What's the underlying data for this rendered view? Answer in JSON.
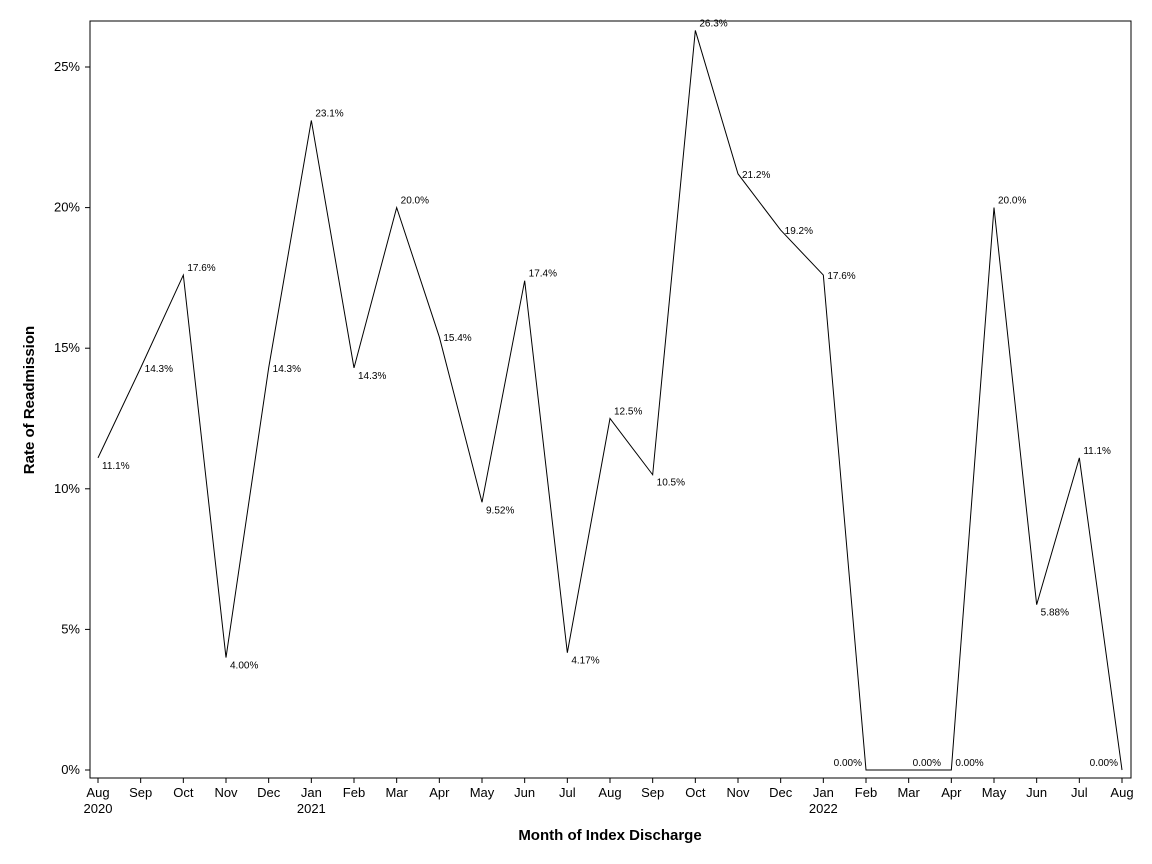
{
  "chart_data": {
    "type": "line",
    "title": "",
    "xlabel": "Month of Index Discharge",
    "ylabel": "Rate of Readmission",
    "ylim": [
      0,
      0.27
    ],
    "grid": false,
    "y_ticks": [
      {
        "value": 0,
        "label": "0%"
      },
      {
        "value": 0.05,
        "label": "5%"
      },
      {
        "value": 0.1,
        "label": "10%"
      },
      {
        "value": 0.15,
        "label": "15%"
      },
      {
        "value": 0.2,
        "label": "20%"
      },
      {
        "value": 0.25,
        "label": "25%"
      }
    ],
    "year_labels": [
      {
        "index": 0,
        "label": "2020"
      },
      {
        "index": 5,
        "label": "2021"
      },
      {
        "index": 17,
        "label": "2022"
      }
    ],
    "line_color": "#000000",
    "series": [
      {
        "categories": [
          "Aug",
          "Sep",
          "Oct",
          "Nov",
          "Dec",
          "Jan",
          "Feb",
          "Mar",
          "Apr",
          "May",
          "Jun",
          "Jul",
          "Aug",
          "Sep",
          "Oct",
          "Nov",
          "Dec",
          "Jan",
          "Feb",
          "Mar",
          "Apr",
          "May",
          "Jun",
          "Jul",
          "Aug"
        ],
        "values": [
          0.111,
          0.143,
          0.176,
          0.04,
          0.143,
          0.231,
          0.143,
          0.2,
          0.154,
          0.0952,
          0.174,
          0.0417,
          0.125,
          0.105,
          0.263,
          0.212,
          0.192,
          0.176,
          0,
          0,
          0,
          0.2,
          0.0588,
          0.111,
          0
        ],
        "labels": [
          "11.1%",
          "14.3%",
          "17.6%",
          "4.00%",
          "14.3%",
          "23.1%",
          "14.3%",
          "20.0%",
          "15.4%",
          "9.52%",
          "17.4%",
          "4.17%",
          "12.5%",
          "10.5%",
          "26.3%",
          "21.2%",
          "19.2%",
          "17.6%",
          "0.00%",
          "0.00%",
          "0.00%",
          "20.0%",
          "5.88%",
          "11.1%",
          "0.00%"
        ]
      }
    ]
  }
}
